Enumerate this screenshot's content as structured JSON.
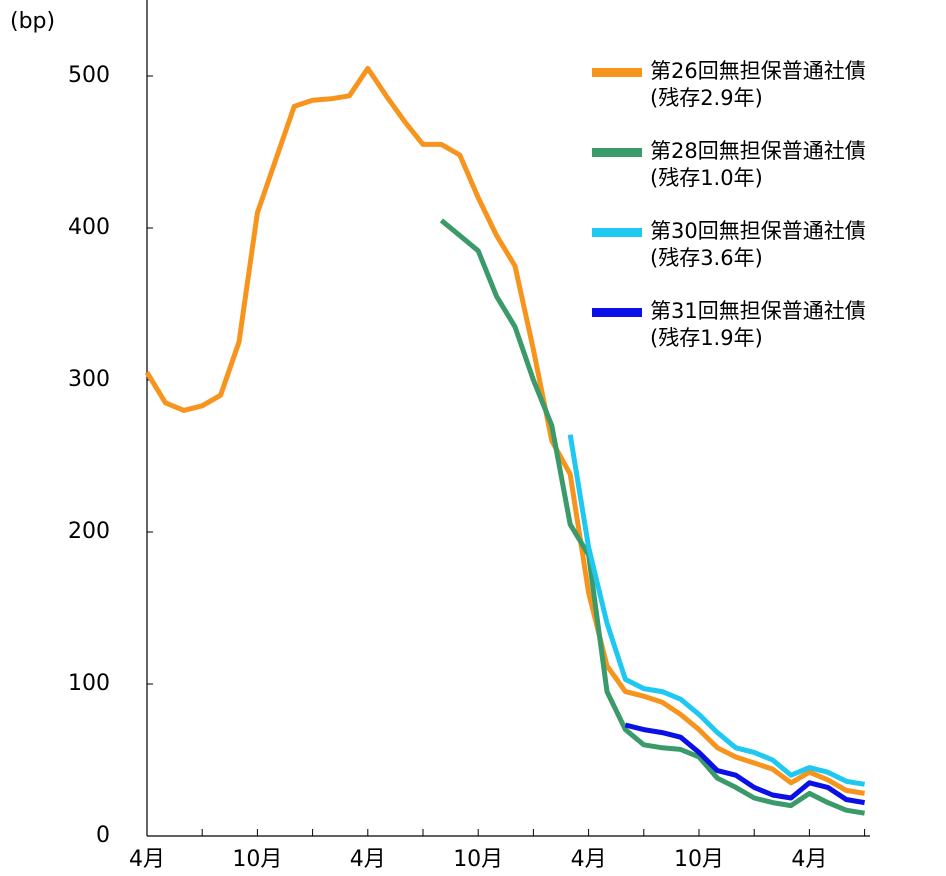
{
  "chart_data": {
    "type": "line",
    "y_label": "(bp)",
    "categories": [
      "4月",
      null,
      null,
      null,
      null,
      null,
      "10月",
      null,
      null,
      null,
      null,
      null,
      "4月",
      null,
      null,
      null,
      null,
      null,
      "10月",
      null,
      null,
      null,
      null,
      null,
      "4月",
      null,
      null,
      null,
      null,
      null,
      "10月",
      null,
      null,
      null,
      null,
      null,
      "4月",
      null,
      null,
      null
    ],
    "series": [
      {
        "name": "第26回無担保普通社債\n(残存2.9年)",
        "color": "#f7941d",
        "values": [
          305,
          285,
          280,
          283,
          290,
          325,
          410,
          445,
          480,
          484,
          485,
          487,
          505,
          487,
          470,
          455,
          455,
          448,
          420,
          395,
          375,
          320,
          260,
          238,
          160,
          112,
          95,
          92,
          88,
          80,
          70,
          58,
          52,
          48,
          44,
          35,
          42,
          37,
          30,
          28
        ]
      },
      {
        "name": "第28回無担保普通社債\n(残存1.0年)",
        "color": "#3a9a6a",
        "values": [
          null,
          null,
          null,
          null,
          null,
          null,
          null,
          null,
          null,
          null,
          null,
          null,
          null,
          null,
          null,
          null,
          405,
          395,
          385,
          355,
          335,
          300,
          270,
          205,
          185,
          95,
          70,
          60,
          58,
          57,
          52,
          38,
          32,
          25,
          22,
          20,
          28,
          22,
          17,
          15
        ]
      },
      {
        "name": "第30回無担保普通社債\n(残存3.6年)",
        "color": "#1ec8f0",
        "values": [
          null,
          null,
          null,
          null,
          null,
          null,
          null,
          null,
          null,
          null,
          null,
          null,
          null,
          null,
          null,
          null,
          null,
          null,
          null,
          null,
          null,
          null,
          null,
          264,
          190,
          140,
          103,
          97,
          95,
          90,
          80,
          68,
          58,
          55,
          50,
          40,
          45,
          42,
          36,
          34
        ]
      },
      {
        "name": "第31回無担保普通社債\n(残存1.9年)",
        "color": "#0a10e6",
        "values": [
          null,
          null,
          null,
          null,
          null,
          null,
          null,
          null,
          null,
          null,
          null,
          null,
          null,
          null,
          null,
          null,
          null,
          null,
          null,
          null,
          null,
          null,
          null,
          null,
          null,
          null,
          73,
          70,
          68,
          65,
          55,
          43,
          40,
          32,
          27,
          25,
          35,
          32,
          24,
          22
        ]
      }
    ],
    "ylim": [
      0,
      550
    ],
    "yticks": [
      0,
      100,
      200,
      300,
      400,
      500
    ]
  }
}
